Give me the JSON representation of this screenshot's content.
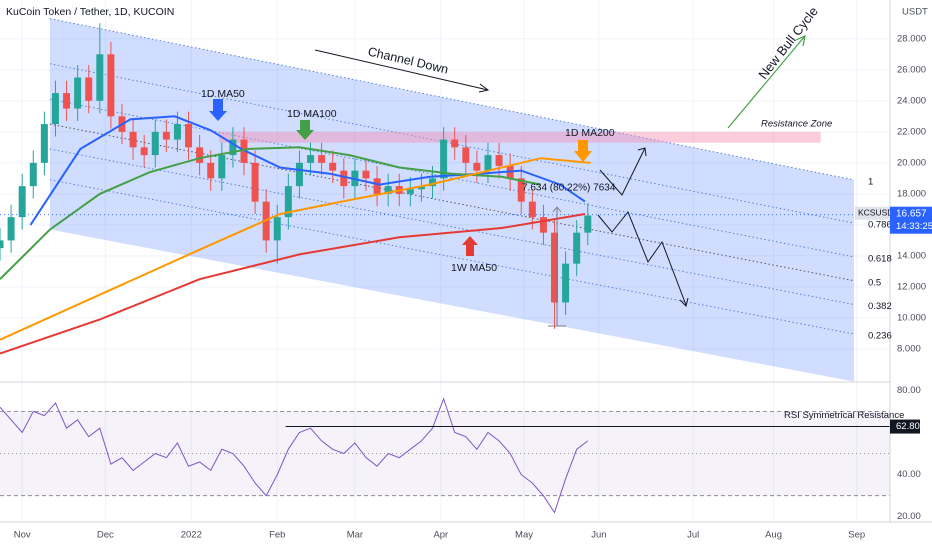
{
  "title": "KuCoin Token / Tether, 1D, KUCOIN",
  "currency": "USDT",
  "chart_data": [
    {
      "type": "candlestick",
      "panel": "price",
      "x": [
        -8,
        -4,
        0,
        4,
        8,
        12,
        16,
        20,
        24,
        28,
        32,
        36,
        40,
        44,
        48,
        52,
        56,
        60,
        64,
        68,
        72,
        76,
        80,
        84,
        88,
        92,
        96,
        100,
        104,
        108,
        112,
        116,
        120,
        124,
        128,
        132,
        136,
        140,
        144,
        148,
        152,
        156,
        160,
        164,
        168,
        172,
        176,
        180,
        184,
        188,
        192,
        196,
        200,
        204
      ],
      "open": [
        14.5,
        15.0,
        16.5,
        18.5,
        20.0,
        22.5,
        24.5,
        23.5,
        25.5,
        24.0,
        27.0,
        23.0,
        22.0,
        21.0,
        20.5,
        22.0,
        21.5,
        22.5,
        21.0,
        20.0,
        19.0,
        20.5,
        21.5,
        20.0,
        17.5,
        15.0,
        16.5,
        18.5,
        20.0,
        20.5,
        20.0,
        19.5,
        18.5,
        19.5,
        19.0,
        18.0,
        18.5,
        18.0,
        18.3,
        18.5,
        19.0,
        21.5,
        21.0,
        20.0,
        19.5,
        20.5,
        19.8,
        19.0,
        17.5,
        16.5,
        15.5,
        11.0,
        13.5,
        15.5
      ],
      "high": [
        15.8,
        17.3,
        19.3,
        20.8,
        23.3,
        25.3,
        25.3,
        26.3,
        26.3,
        29.0,
        27.8,
        23.8,
        22.8,
        21.8,
        22.8,
        22.8,
        23.3,
        23.3,
        21.8,
        20.8,
        21.3,
        22.3,
        22.3,
        20.8,
        18.3,
        17.3,
        19.3,
        20.8,
        21.3,
        21.3,
        20.8,
        20.3,
        20.3,
        20.3,
        19.8,
        19.3,
        19.3,
        19.1,
        19.3,
        19.8,
        22.3,
        22.3,
        21.8,
        20.8,
        21.3,
        21.3,
        20.6,
        19.8,
        18.3,
        17.3,
        16.3,
        14.3,
        16.3,
        17.4
      ],
      "low": [
        13.7,
        14.2,
        15.7,
        17.7,
        19.2,
        21.7,
        22.7,
        22.7,
        23.2,
        23.2,
        22.2,
        21.2,
        20.2,
        19.7,
        19.7,
        20.7,
        20.7,
        20.2,
        19.2,
        18.2,
        18.2,
        19.7,
        19.2,
        16.7,
        14.2,
        13.5,
        15.7,
        17.7,
        19.2,
        19.2,
        18.7,
        17.7,
        17.7,
        18.2,
        17.2,
        17.2,
        17.2,
        17.2,
        17.5,
        17.7,
        18.2,
        20.2,
        19.2,
        18.7,
        18.7,
        19.0,
        18.2,
        16.7,
        15.7,
        14.7,
        9.3,
        10.2,
        12.7,
        14.7
      ],
      "close": [
        15.0,
        16.5,
        18.5,
        20.0,
        22.5,
        24.5,
        23.5,
        25.5,
        24.0,
        27.0,
        23.0,
        22.0,
        21.0,
        20.5,
        22.0,
        21.5,
        22.5,
        21.0,
        20.0,
        19.0,
        20.5,
        21.5,
        20.0,
        17.5,
        15.0,
        16.5,
        18.5,
        20.0,
        20.5,
        20.0,
        19.5,
        18.5,
        19.5,
        19.0,
        18.0,
        18.5,
        18.0,
        18.3,
        18.5,
        19.0,
        21.5,
        21.0,
        20.0,
        19.5,
        20.5,
        19.8,
        19.0,
        17.5,
        16.5,
        15.5,
        11.0,
        13.5,
        15.5,
        16.6
      ],
      "up_color": "#26a69a",
      "down_color": "#ef5350",
      "series": [
        {
          "name": "1D MA50",
          "color": "#2962ff",
          "x": [
            3,
            21,
            39,
            55,
            68,
            79,
            93,
            111,
            129,
            147,
            165,
            180,
            194,
            203
          ],
          "values": [
            16.0,
            20.9,
            22.8,
            23.0,
            22.1,
            20.9,
            19.7,
            19.3,
            18.6,
            19.1,
            19.3,
            19.5,
            18.6,
            17.5
          ]
        },
        {
          "name": "1D MA100",
          "color": "#43a047",
          "x": [
            -8,
            10,
            28,
            46,
            64,
            82,
            100,
            118,
            136,
            155,
            173,
            187
          ],
          "values": [
            12.5,
            15.7,
            18.0,
            19.4,
            20.3,
            20.9,
            21.0,
            20.5,
            19.7,
            19.3,
            19.1,
            18.6
          ]
        },
        {
          "name": "1D MA200",
          "color": "#ff9800",
          "x": [
            -8,
            28,
            64,
            93,
            118,
            147,
            173,
            187,
            205
          ],
          "values": [
            8.6,
            11.5,
            14.4,
            16.7,
            17.6,
            18.6,
            19.7,
            20.3,
            20.0
          ]
        },
        {
          "name": "1W MA50",
          "color": "#e53935",
          "x": [
            -8,
            28,
            64,
            100,
            136,
            173,
            203
          ],
          "values": [
            7.7,
            9.9,
            12.5,
            14.1,
            15.2,
            15.8,
            16.7
          ]
        }
      ],
      "channel": {
        "x": [
          10,
          300
        ],
        "top": [
          29.3,
          18.9
        ],
        "bottom": [
          15.7,
          5.9
        ],
        "levels": [
          1,
          0.786,
          0.618,
          0.5,
          0.382,
          0.236
        ]
      },
      "resistance_zone": {
        "x": [
          71,
          288
        ],
        "y": [
          21.3,
          22.0
        ],
        "label": "Resistance Zone"
      },
      "last_price": 16.657,
      "symbol": "KCSUSDT",
      "countdown": "14:33:25",
      "annotations": [
        "Channel Down",
        "1D MA50",
        "1D MA100",
        "1D MA200",
        "1W MA50",
        "New Bull Cycle",
        "7.634 (80.22%) 7634"
      ],
      "xlim": [
        -8,
        313
      ],
      "xticks": [
        {
          "value": 0,
          "label": "Nov"
        },
        {
          "value": 30,
          "label": "Dec"
        },
        {
          "value": 61,
          "label": "2022"
        },
        {
          "value": 92,
          "label": "Feb"
        },
        {
          "value": 120,
          "label": "Mar"
        },
        {
          "value": 151,
          "label": "Apr"
        },
        {
          "value": 181,
          "label": "May"
        },
        {
          "value": 208,
          "label": "Jun"
        },
        {
          "value": 242,
          "label": "Jul"
        },
        {
          "value": 271,
          "label": "Aug"
        },
        {
          "value": 301,
          "label": "Sep"
        }
      ],
      "ylim": [
        6,
        30.5
      ],
      "yticks": [
        {
          "value": 8,
          "label": "8.000"
        },
        {
          "value": 10,
          "label": "10.000"
        },
        {
          "value": 12,
          "label": "12.000"
        },
        {
          "value": 14,
          "label": "14.000"
        },
        {
          "value": 16,
          "label": "16.000"
        },
        {
          "value": 18,
          "label": "18.000"
        },
        {
          "value": 20,
          "label": "20.000"
        },
        {
          "value": 22,
          "label": "22.000"
        },
        {
          "value": 24,
          "label": "24.000"
        },
        {
          "value": 26,
          "label": "26.000"
        },
        {
          "value": 28,
          "label": "28.000"
        }
      ],
      "grid": true
    },
    {
      "type": "line",
      "panel": "rsi",
      "color": "#7e57c2",
      "x": [
        -8,
        -4,
        0,
        4,
        8,
        12,
        16,
        20,
        24,
        28,
        32,
        36,
        40,
        44,
        48,
        52,
        56,
        60,
        64,
        68,
        72,
        76,
        80,
        84,
        88,
        92,
        96,
        100,
        104,
        108,
        112,
        116,
        120,
        124,
        128,
        132,
        136,
        140,
        144,
        148,
        152,
        156,
        160,
        164,
        168,
        172,
        176,
        180,
        184,
        188,
        192,
        196,
        200,
        204
      ],
      "values": [
        72,
        66,
        60,
        70,
        68,
        74,
        62,
        66,
        58,
        62,
        45,
        48,
        42,
        46,
        50,
        48,
        55,
        44,
        46,
        42,
        52,
        50,
        44,
        36,
        30,
        40,
        52,
        60,
        62,
        56,
        52,
        50,
        55,
        48,
        44,
        50,
        48,
        52,
        56,
        62,
        76,
        60,
        58,
        52,
        60,
        56,
        50,
        40,
        36,
        30,
        22,
        38,
        52,
        56
      ],
      "bands": [
        70,
        30
      ],
      "midline": 50,
      "resistance": {
        "label": "RSI Symmetrical Resistance",
        "value": 62.8,
        "value_label": "62.80",
        "x_start": 95
      },
      "xlim": [
        -8,
        313
      ],
      "ylim": [
        17.5,
        83
      ],
      "yticks": [
        {
          "value": 80,
          "label": "80.00"
        },
        {
          "value": 40,
          "label": "40.00"
        },
        {
          "value": 20,
          "label": "20.00"
        }
      ]
    }
  ]
}
